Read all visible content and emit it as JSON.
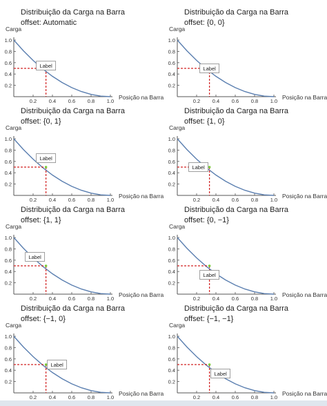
{
  "chart_data": [
    {
      "type": "line",
      "title": "Distribuição da Carga na Barra",
      "subtitle": "offset: Automatic",
      "ylabel": "Carga",
      "xlabel": "Posição na Barra",
      "x": [
        0,
        0.1,
        0.2,
        0.3,
        0.4,
        0.5,
        0.6,
        0.7,
        0.8,
        0.9,
        1.0
      ],
      "y": [
        1.0,
        0.81,
        0.64,
        0.49,
        0.36,
        0.25,
        0.16,
        0.09,
        0.04,
        0.01,
        0.0
      ],
      "xlim": [
        0,
        1
      ],
      "ylim": [
        0,
        1
      ],
      "xticks": [
        "0.2",
        "0.4",
        "0.6",
        "0.8",
        "1.0"
      ],
      "yticks": [
        "0.2",
        "0.4",
        "0.6",
        "0.8",
        "1.0"
      ],
      "marker": {
        "x": 0.333,
        "y": 0.5
      },
      "label_text": "Label",
      "offset": [
        0,
        0.3
      ]
    },
    {
      "type": "line",
      "title": "Distribuição da Carga na Barra",
      "subtitle": "offset: {0, 0}",
      "ylabel": "Carga",
      "xlabel": "Posição na Barra",
      "x": [
        0,
        0.1,
        0.2,
        0.3,
        0.4,
        0.5,
        0.6,
        0.7,
        0.8,
        0.9,
        1.0
      ],
      "y": [
        1.0,
        0.81,
        0.64,
        0.49,
        0.36,
        0.25,
        0.16,
        0.09,
        0.04,
        0.01,
        0.0
      ],
      "xlim": [
        0,
        1
      ],
      "ylim": [
        0,
        1
      ],
      "xticks": [
        "0.2",
        "0.4",
        "0.6",
        "0.8",
        "1.0"
      ],
      "yticks": [
        "0.2",
        "0.4",
        "0.6",
        "0.8",
        "1.0"
      ],
      "marker": {
        "x": 0.333,
        "y": 0.5
      },
      "label_text": "Label",
      "offset": [
        0,
        0
      ]
    },
    {
      "type": "line",
      "title": "Distribuição da Carga na Barra",
      "subtitle": "offset: {0, 1}",
      "ylabel": "Carga",
      "xlabel": "Posição na Barra",
      "x": [
        0,
        0.1,
        0.2,
        0.3,
        0.4,
        0.5,
        0.6,
        0.7,
        0.8,
        0.9,
        1.0
      ],
      "y": [
        1.0,
        0.81,
        0.64,
        0.49,
        0.36,
        0.25,
        0.16,
        0.09,
        0.04,
        0.01,
        0.0
      ],
      "xlim": [
        0,
        1
      ],
      "ylim": [
        0,
        1
      ],
      "xticks": [
        "0.2",
        "0.4",
        "0.6",
        "0.8",
        "1.0"
      ],
      "yticks": [
        "0.2",
        "0.4",
        "0.6",
        "0.8",
        "1.0"
      ],
      "marker": {
        "x": 0.333,
        "y": 0.5
      },
      "label_text": "Label",
      "offset": [
        0,
        1
      ]
    },
    {
      "type": "line",
      "title": "Distribuição da Carga na Barra",
      "subtitle": "offset: {1, 0}",
      "ylabel": "Carga",
      "xlabel": "Posição na Barra",
      "x": [
        0,
        0.1,
        0.2,
        0.3,
        0.4,
        0.5,
        0.6,
        0.7,
        0.8,
        0.9,
        1.0
      ],
      "y": [
        1.0,
        0.81,
        0.64,
        0.49,
        0.36,
        0.25,
        0.16,
        0.09,
        0.04,
        0.01,
        0.0
      ],
      "xlim": [
        0,
        1
      ],
      "ylim": [
        0,
        1
      ],
      "xticks": [
        "0.2",
        "0.4",
        "0.6",
        "0.8",
        "1.0"
      ],
      "yticks": [
        "0.2",
        "0.4",
        "0.6",
        "0.8",
        "1.0"
      ],
      "marker": {
        "x": 0.333,
        "y": 0.5
      },
      "label_text": "Label",
      "offset": [
        1,
        0
      ]
    },
    {
      "type": "line",
      "title": "Distribuição da Carga na Barra",
      "subtitle": "offset: {1, 1}",
      "ylabel": "Carga",
      "xlabel": "Posição na Barra",
      "x": [
        0,
        0.1,
        0.2,
        0.3,
        0.4,
        0.5,
        0.6,
        0.7,
        0.8,
        0.9,
        1.0
      ],
      "y": [
        1.0,
        0.81,
        0.64,
        0.49,
        0.36,
        0.25,
        0.16,
        0.09,
        0.04,
        0.01,
        0.0
      ],
      "xlim": [
        0,
        1
      ],
      "ylim": [
        0,
        1
      ],
      "xticks": [
        "0.2",
        "0.4",
        "0.6",
        "0.8",
        "1.0"
      ],
      "yticks": [
        "0.2",
        "0.4",
        "0.6",
        "0.8",
        "1.0"
      ],
      "marker": {
        "x": 0.333,
        "y": 0.5
      },
      "label_text": "Label",
      "offset": [
        1,
        1
      ]
    },
    {
      "type": "line",
      "title": "Distribuição da Carga na Barra",
      "subtitle": "offset: {0, −1}",
      "ylabel": "Carga",
      "xlabel": "Posição na Barra",
      "x": [
        0,
        0.1,
        0.2,
        0.3,
        0.4,
        0.5,
        0.6,
        0.7,
        0.8,
        0.9,
        1.0
      ],
      "y": [
        1.0,
        0.81,
        0.64,
        0.49,
        0.36,
        0.25,
        0.16,
        0.09,
        0.04,
        0.01,
        0.0
      ],
      "xlim": [
        0,
        1
      ],
      "ylim": [
        0,
        1
      ],
      "xticks": [
        "0.2",
        "0.4",
        "0.6",
        "0.8",
        "1.0"
      ],
      "yticks": [
        "0.2",
        "0.4",
        "0.6",
        "0.8",
        "1.0"
      ],
      "marker": {
        "x": 0.333,
        "y": 0.5
      },
      "label_text": "Label",
      "offset": [
        0,
        -1
      ]
    },
    {
      "type": "line",
      "title": "Distribuição da Carga na Barra",
      "subtitle": "offset: {−1, 0}",
      "ylabel": "Carga",
      "xlabel": "Posição na Barra",
      "x": [
        0,
        0.1,
        0.2,
        0.3,
        0.4,
        0.5,
        0.6,
        0.7,
        0.8,
        0.9,
        1.0
      ],
      "y": [
        1.0,
        0.81,
        0.64,
        0.49,
        0.36,
        0.25,
        0.16,
        0.09,
        0.04,
        0.01,
        0.0
      ],
      "xlim": [
        0,
        1
      ],
      "ylim": [
        0,
        1
      ],
      "xticks": [
        "0.2",
        "0.4",
        "0.6",
        "0.8",
        "1.0"
      ],
      "yticks": [
        "0.2",
        "0.4",
        "0.6",
        "0.8",
        "1.0"
      ],
      "marker": {
        "x": 0.333,
        "y": 0.5
      },
      "label_text": "Label",
      "offset": [
        -1,
        0
      ]
    },
    {
      "type": "line",
      "title": "Distribuição da Carga na Barra",
      "subtitle": "offset: {−1, −1}",
      "ylabel": "Carga",
      "xlabel": "Posição na Barra",
      "x": [
        0,
        0.1,
        0.2,
        0.3,
        0.4,
        0.5,
        0.6,
        0.7,
        0.8,
        0.9,
        1.0
      ],
      "y": [
        1.0,
        0.81,
        0.64,
        0.49,
        0.36,
        0.25,
        0.16,
        0.09,
        0.04,
        0.01,
        0.0
      ],
      "xlim": [
        0,
        1
      ],
      "ylim": [
        0,
        1
      ],
      "xticks": [
        "0.2",
        "0.4",
        "0.6",
        "0.8",
        "1.0"
      ],
      "yticks": [
        "0.2",
        "0.4",
        "0.6",
        "0.8",
        "1.0"
      ],
      "marker": {
        "x": 0.333,
        "y": 0.5
      },
      "label_text": "Label",
      "offset": [
        -1,
        -1
      ]
    }
  ],
  "colors": {
    "curve": "#5b7fb0",
    "guide": "#d22020",
    "marker": "#7acb3a",
    "label_border": "#888888"
  }
}
